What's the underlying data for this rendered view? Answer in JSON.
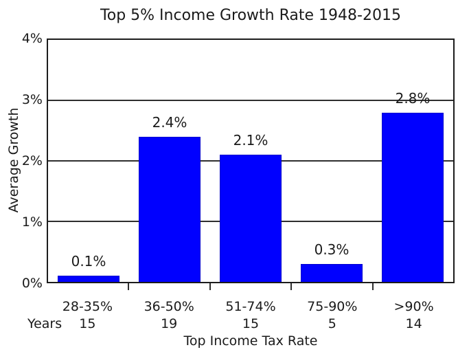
{
  "title": "Top 5% Income Growth Rate 1948-2015",
  "years_label": "Years",
  "colors": {
    "bar": "#0000ff",
    "bar_edge": "#0000cc",
    "grid": "#2e2e2e",
    "frame": "#1c1c1c",
    "text": "#1a1a1a",
    "background": "#ffffff"
  },
  "chart_data": {
    "type": "bar",
    "title": "Top 5% Income Growth Rate 1948-2015",
    "categories": [
      "28-35%",
      "36-50%",
      "51-74%",
      "75-90%",
      ">90%"
    ],
    "values": [
      0.1,
      2.4,
      2.1,
      0.3,
      2.8
    ],
    "bar_labels": [
      "0.1%",
      "2.4%",
      "2.1%",
      "0.3%",
      "2.8%"
    ],
    "years": [
      "15",
      "19",
      "15",
      "5",
      "14"
    ],
    "years_row_label": "Years",
    "xlabel": "Top Income Tax Rate",
    "ylabel": "Average Growth",
    "ylim": [
      0,
      4
    ],
    "ytick_values": [
      0,
      1,
      2,
      3,
      4
    ],
    "ytick_labels": [
      "0%",
      "1%",
      "2%",
      "3%",
      "4%"
    ],
    "grid": "horizontal-on",
    "legend": "none",
    "bar_width_fraction": 0.7576,
    "bar_color": "#0000ff"
  }
}
